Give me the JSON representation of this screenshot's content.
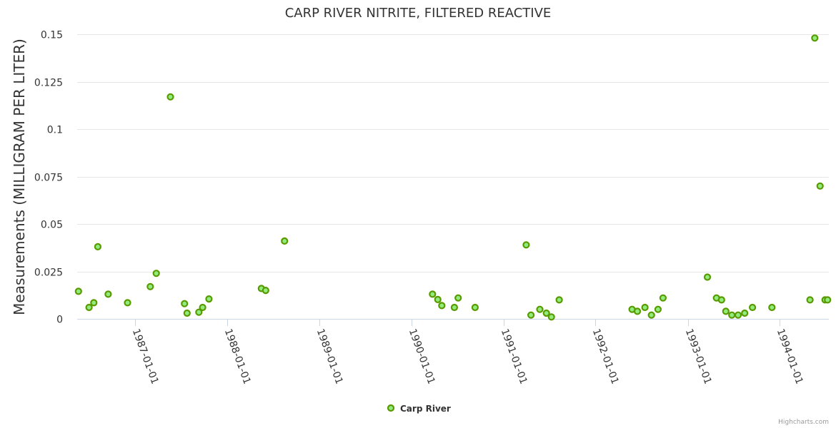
{
  "chart_data": {
    "type": "scatter",
    "title": "CARP RIVER NITRITE, FILTERED REACTIVE",
    "xlabel": "",
    "ylabel": "Measurements (MILLIGRAM PER LITER)",
    "xlim": [
      "1986-05-15",
      "1994-07-15"
    ],
    "ylim": [
      0,
      0.15
    ],
    "yticks": [
      0,
      0.025,
      0.05,
      0.075,
      0.1,
      0.125,
      0.15
    ],
    "ytick_labels": [
      "0",
      "0.025",
      "0.05",
      "0.075",
      "0.1",
      "0.125",
      "0.15"
    ],
    "xticks": [
      "1987-01-01",
      "1988-01-01",
      "1989-01-01",
      "1990-01-01",
      "1991-01-01",
      "1992-01-01",
      "1993-01-01",
      "1994-01-01"
    ],
    "grid": true,
    "legend_position": "bottom-center",
    "colors": {
      "marker_fill": "#90ed7d",
      "marker_stroke": "#5a9a00",
      "grid": "#e6e6e6",
      "text": "#333333"
    },
    "series": [
      {
        "name": "Carp River",
        "x": [
          "1986-05-20",
          "1986-07-01",
          "1986-07-20",
          "1986-08-05",
          "1986-09-15",
          "1986-12-01",
          "1987-03-01",
          "1987-03-25",
          "1987-05-20",
          "1987-07-15",
          "1987-07-25",
          "1987-09-10",
          "1987-09-25",
          "1987-10-20",
          "1988-05-15",
          "1988-06-01",
          "1988-08-15",
          "1990-03-25",
          "1990-04-15",
          "1990-05-01",
          "1990-06-20",
          "1990-07-05",
          "1990-09-10",
          "1991-04-01",
          "1991-04-20",
          "1991-05-25",
          "1991-06-20",
          "1991-07-10",
          "1991-08-10",
          "1992-05-25",
          "1992-06-15",
          "1992-07-15",
          "1992-08-10",
          "1992-09-05",
          "1992-09-25",
          "1993-03-20",
          "1993-04-25",
          "1993-05-15",
          "1993-06-01",
          "1993-06-25",
          "1993-07-20",
          "1993-08-15",
          "1993-09-15",
          "1993-12-01",
          "1994-05-01",
          "1994-05-20",
          "1994-06-10",
          "1994-06-30",
          "1994-07-10"
        ],
        "values": [
          0.0145,
          0.006,
          0.0085,
          0.038,
          0.013,
          0.0085,
          0.017,
          0.024,
          0.117,
          0.008,
          0.003,
          0.0035,
          0.006,
          0.0105,
          0.016,
          0.015,
          0.041,
          0.013,
          0.0102,
          0.007,
          0.006,
          0.011,
          0.006,
          0.039,
          0.002,
          0.005,
          0.003,
          0.001,
          0.01,
          0.005,
          0.004,
          0.006,
          0.002,
          0.005,
          0.011,
          0.022,
          0.011,
          0.01,
          0.004,
          0.002,
          0.002,
          0.003,
          0.006,
          0.006,
          0.01,
          0.148,
          0.07,
          0.01,
          0.01
        ]
      }
    ]
  },
  "credits": "Highcharts.com"
}
